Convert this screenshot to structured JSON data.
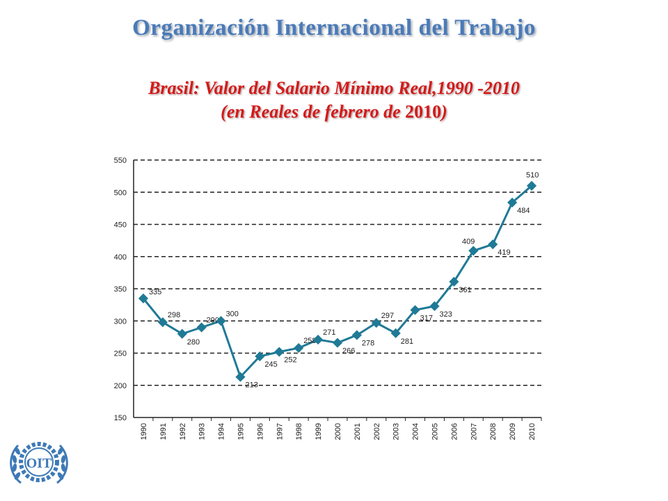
{
  "header": {
    "org_title": "Organización Internacional del Trabajo",
    "subtitle_line1": "Brasil: Valor del Salario Mínimo Real,1990 -2010",
    "subtitle_line2_prefix": "(en Reales de febrero de ",
    "subtitle_line2_year": "2010",
    "subtitle_line2_suffix": ")"
  },
  "logo": {
    "text": "OIT"
  },
  "colors": {
    "title": "#4a7ab8",
    "subtitle": "#d41a1a",
    "series": "#1f7a96",
    "logo": "#3e79b6"
  },
  "chart_data": {
    "type": "line",
    "title": "",
    "xlabel": "",
    "ylabel": "",
    "categories": [
      "1990",
      "1991",
      "1992",
      "1993",
      "1994",
      "1995",
      "1996",
      "1997",
      "1998",
      "1999",
      "2000",
      "2001",
      "2002",
      "2003",
      "2004",
      "2005",
      "2006",
      "2007",
      "2008",
      "2009",
      "2010"
    ],
    "series": [
      {
        "values": [
          335,
          298,
          280,
          290,
          300,
          213,
          245,
          252,
          258,
          271,
          266,
          278,
          297,
          281,
          317,
          323,
          361,
          409,
          419,
          484,
          510
        ]
      }
    ],
    "ylim": [
      150,
      550
    ],
    "yticks": [
      150,
      200,
      250,
      300,
      350,
      400,
      450,
      500,
      550
    ],
    "grid": "horizontal dashed",
    "data_labels": true
  }
}
